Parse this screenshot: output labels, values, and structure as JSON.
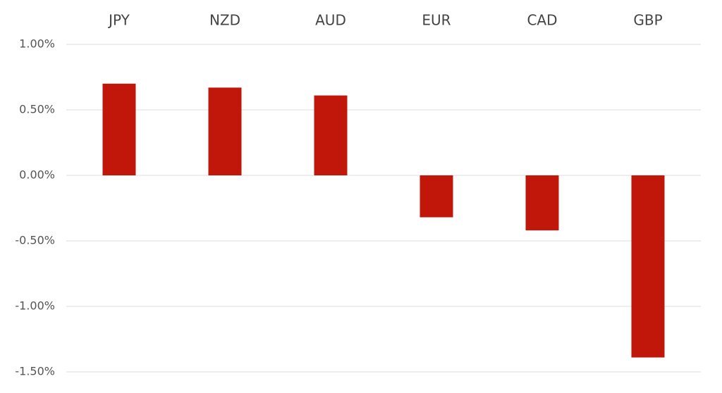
{
  "chart_data": {
    "type": "bar",
    "categories": [
      "JPY",
      "NZD",
      "AUD",
      "EUR",
      "CAD",
      "GBP"
    ],
    "values": [
      0.7,
      0.67,
      0.61,
      -0.32,
      -0.42,
      -1.39
    ],
    "color": "#c0170a",
    "ylim": [
      -1.5,
      1.0
    ],
    "yticks": [
      {
        "value": 1.0,
        "label": "1.00%"
      },
      {
        "value": 0.5,
        "label": "0.50%"
      },
      {
        "value": 0.0,
        "label": "0.00%"
      },
      {
        "value": -0.5,
        "label": "-0.50%"
      },
      {
        "value": -1.0,
        "label": "-1.00%"
      },
      {
        "value": -1.5,
        "label": "-1.50%"
      }
    ],
    "grid": true,
    "category_axis_position": "top"
  }
}
